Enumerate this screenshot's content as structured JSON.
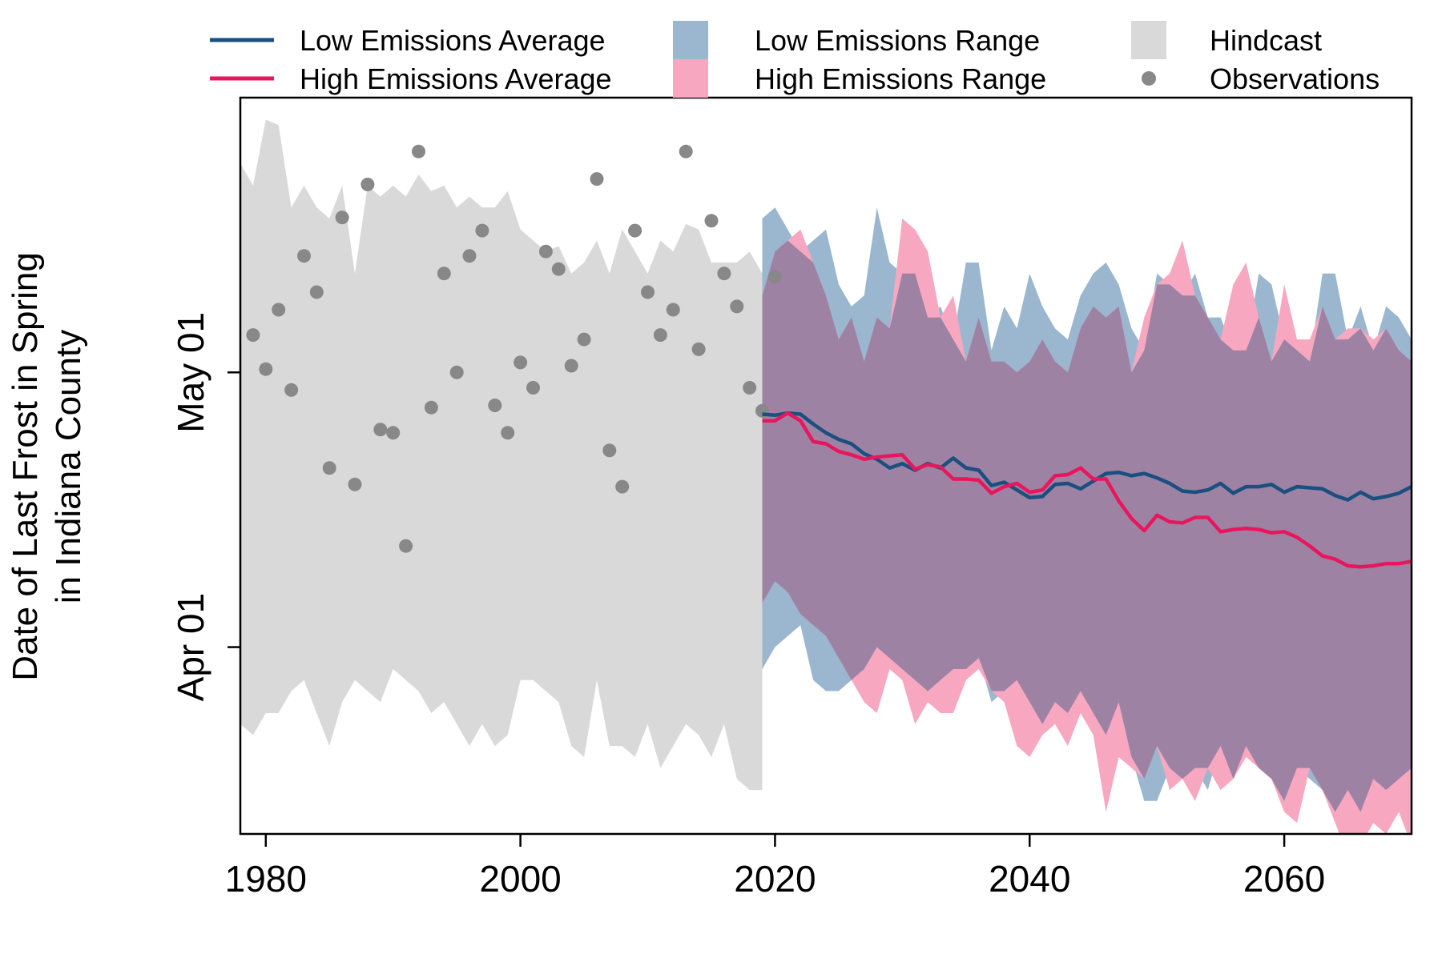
{
  "chart_data": {
    "type": "line",
    "title": "",
    "xlabel": "",
    "ylabel": [
      "Date of Last Frost in Spring",
      "in Indiana County"
    ],
    "xlim": [
      1978,
      2070
    ],
    "ylim_days_rel_apr01": [
      -17,
      50
    ],
    "x_ticks": [
      1980,
      2000,
      2020,
      2040,
      2060
    ],
    "y_ticks": [
      {
        "value": 0,
        "label": "Apr 01"
      },
      {
        "value": 25,
        "label": "May 01"
      }
    ],
    "grid": false,
    "legend": {
      "placement": "top",
      "items": [
        {
          "key": "low_avg",
          "label": "Low Emissions Average",
          "kind": "line",
          "color": "#1a4f7f"
        },
        {
          "key": "high_avg",
          "label": "High Emissions Average",
          "kind": "line",
          "color": "#e8175d"
        },
        {
          "key": "low_range",
          "label": "Low Emissions Range",
          "kind": "fill",
          "color": "#9bb7cf"
        },
        {
          "key": "high_range",
          "label": "High Emissions Range",
          "kind": "fill",
          "color": "#f7a8c0"
        },
        {
          "key": "hindcast",
          "label": "Hindcast",
          "kind": "fill",
          "color": "#d9d9d9"
        },
        {
          "key": "obs",
          "label": "Observations",
          "kind": "point",
          "color": "#888888"
        }
      ]
    },
    "colors": {
      "low_avg": "#1a4f7f",
      "high_avg": "#e8175d",
      "low_range": "#9bb7cf",
      "high_range": "#f7a8c0",
      "overlap": "#9e82a4",
      "hindcast": "#d9d9d9",
      "obs": "#888888"
    },
    "hindcast": {
      "x": [
        1978,
        1979,
        1980,
        1981,
        1982,
        1983,
        1984,
        1985,
        1986,
        1987,
        1988,
        1989,
        1990,
        1991,
        1992,
        1993,
        1994,
        1995,
        1996,
        1997,
        1998,
        1999,
        2000,
        2001,
        2002,
        2003,
        2004,
        2005,
        2006,
        2007,
        2008,
        2009,
        2010,
        2011,
        2012,
        2013,
        2014,
        2015,
        2016,
        2017,
        2018,
        2019
      ],
      "upper": [
        44,
        42,
        48,
        47.5,
        40,
        42,
        40,
        39,
        42,
        34,
        42,
        41,
        42,
        41,
        43,
        41.5,
        42,
        40,
        41,
        40,
        40,
        41.5,
        38,
        37,
        36,
        36.5,
        34,
        35,
        37,
        34,
        38,
        36,
        34,
        37,
        36,
        38.5,
        38,
        35,
        35,
        35,
        36,
        34
      ],
      "lower": [
        -7,
        -8,
        -6,
        -6,
        -4,
        -3,
        -6,
        -9,
        -5,
        -3,
        -4,
        -5,
        -2,
        -3,
        -4,
        -6,
        -5,
        -7,
        -9,
        -7,
        -9,
        -8,
        -3,
        -3,
        -4,
        -5,
        -9,
        -10,
        -3,
        -9,
        -9,
        -10,
        -7,
        -11,
        -9,
        -7,
        -8,
        -10,
        -7,
        -12,
        -13,
        -13
      ]
    },
    "observations": {
      "x": [
        1979,
        1980,
        1981,
        1982,
        1983,
        1984,
        1985,
        1986,
        1987,
        1988,
        1989,
        1990,
        1991,
        1992,
        1993,
        1994,
        1995,
        1996,
        1997,
        1998,
        1999,
        2000,
        2001,
        2002,
        2003,
        2004,
        2005,
        2006,
        2007,
        2008,
        2009,
        2010,
        2011,
        2012,
        2013,
        2014,
        2015,
        2016,
        2017,
        2018,
        2019,
        2020
      ],
      "y": [
        28.4,
        25.3,
        30.7,
        23.4,
        35.6,
        32.3,
        16.3,
        39.1,
        14.8,
        42.1,
        19.8,
        19.5,
        9.2,
        45.1,
        21.8,
        34.0,
        25.0,
        35.6,
        37.9,
        22.0,
        19.5,
        25.9,
        23.6,
        36.0,
        34.4,
        25.6,
        28.0,
        42.6,
        17.9,
        14.6,
        37.9,
        32.3,
        28.4,
        30.7,
        45.1,
        27.1,
        38.8,
        34.0,
        31.0,
        23.6,
        21.5,
        33.7
      ]
    },
    "series": [
      {
        "name": "Low Emissions Average",
        "x": [
          2019,
          2020,
          2021,
          2022,
          2023,
          2024,
          2025,
          2026,
          2027,
          2028,
          2029,
          2030,
          2031,
          2032,
          2033,
          2034,
          2035,
          2036,
          2037,
          2038,
          2039,
          2040,
          2041,
          2042,
          2043,
          2044,
          2045,
          2046,
          2047,
          2048,
          2049,
          2050,
          2051,
          2052,
          2053,
          2054,
          2055,
          2056,
          2057,
          2058,
          2059,
          2060,
          2061,
          2062,
          2063,
          2064,
          2065,
          2066,
          2067,
          2068,
          2069,
          2070
        ],
        "y": [
          21.2,
          21.1,
          21.3,
          21.2,
          20.3,
          19.5,
          18.9,
          18.5,
          17.6,
          17.1,
          16.3,
          16.7,
          16.1,
          16.7,
          16.3,
          17.2,
          16.3,
          16.1,
          14.7,
          15.0,
          14.3,
          13.6,
          13.7,
          14.8,
          14.9,
          14.4,
          15.1,
          15.8,
          15.9,
          15.6,
          15.8,
          15.4,
          14.9,
          14.2,
          14.1,
          14.3,
          14.9,
          14.0,
          14.6,
          14.6,
          14.8,
          14.1,
          14.6,
          14.5,
          14.4,
          13.8,
          13.4,
          14.1,
          13.5,
          13.7,
          14.0,
          14.6
        ]
      },
      {
        "name": "High Emissions Average",
        "x": [
          2019,
          2020,
          2021,
          2022,
          2023,
          2024,
          2025,
          2026,
          2027,
          2028,
          2029,
          2030,
          2031,
          2032,
          2033,
          2034,
          2035,
          2036,
          2037,
          2038,
          2039,
          2040,
          2041,
          2042,
          2043,
          2044,
          2045,
          2046,
          2047,
          2048,
          2049,
          2050,
          2051,
          2052,
          2053,
          2054,
          2055,
          2056,
          2057,
          2058,
          2059,
          2060,
          2061,
          2062,
          2063,
          2064,
          2065,
          2066,
          2067,
          2068,
          2069,
          2070
        ],
        "y": [
          20.6,
          20.6,
          21.3,
          20.6,
          18.7,
          18.5,
          17.8,
          17.5,
          17.1,
          17.3,
          17.4,
          17.5,
          16.2,
          16.6,
          16.4,
          15.3,
          15.3,
          15.2,
          14.0,
          14.6,
          14.9,
          14.1,
          14.3,
          15.6,
          15.7,
          16.3,
          15.3,
          15.3,
          13.3,
          11.7,
          10.6,
          12.0,
          11.4,
          11.3,
          11.8,
          11.8,
          10.5,
          10.7,
          10.8,
          10.7,
          10.4,
          10.5,
          10.0,
          9.2,
          8.3,
          8.0,
          7.4,
          7.3,
          7.4,
          7.6,
          7.6,
          7.8
        ]
      }
    ],
    "ranges": {
      "x": [
        2019,
        2020,
        2021,
        2022,
        2023,
        2024,
        2025,
        2026,
        2027,
        2028,
        2029,
        2030,
        2031,
        2032,
        2033,
        2034,
        2035,
        2036,
        2037,
        2038,
        2039,
        2040,
        2041,
        2042,
        2043,
        2044,
        2045,
        2046,
        2047,
        2048,
        2049,
        2050,
        2051,
        2052,
        2053,
        2054,
        2055,
        2056,
        2057,
        2058,
        2059,
        2060,
        2061,
        2062,
        2063,
        2064,
        2065,
        2066,
        2067,
        2068,
        2069,
        2070
      ],
      "low_upper": [
        39,
        40,
        38,
        36,
        37,
        38,
        33,
        31,
        32,
        40,
        35,
        34,
        34,
        30,
        31,
        28,
        35,
        35,
        27,
        31,
        29,
        34,
        31,
        29,
        28,
        32,
        34,
        35,
        33,
        29,
        27,
        34,
        33,
        32,
        34,
        30,
        30,
        27,
        27,
        34,
        33,
        28,
        27,
        26,
        34,
        34,
        28,
        31,
        27,
        31,
        30,
        28
      ],
      "low_lower": [
        -2,
        0,
        1,
        2,
        -3,
        -4,
        -4,
        -3,
        -2,
        0,
        -1,
        -2,
        -3,
        -4,
        -3,
        -2,
        -2,
        -1,
        -5,
        -4,
        -3,
        -5,
        -7,
        -5,
        -6,
        -4,
        -6,
        -8,
        -5,
        -10,
        -14,
        -14,
        -11,
        -12,
        -11,
        -13,
        -9,
        -12,
        -9,
        -11,
        -12,
        -14,
        -11,
        -12,
        -13,
        -15,
        -13,
        -15,
        -12,
        -13,
        -12,
        -11
      ],
      "high_upper": [
        32,
        36,
        37,
        38,
        35,
        32,
        28,
        30,
        26,
        30,
        29,
        39,
        38,
        36,
        30,
        32,
        26,
        30,
        26,
        26,
        25,
        26,
        28,
        26,
        25,
        29,
        31,
        30,
        31,
        25,
        30,
        33,
        34,
        37,
        32,
        30,
        28,
        33,
        35,
        30,
        26,
        33,
        28,
        28,
        31,
        28,
        29,
        29,
        28,
        29,
        27,
        26
      ],
      "high_lower": [
        4,
        6,
        5,
        3,
        2,
        1,
        -1,
        -3,
        -5,
        -6,
        -2,
        -3,
        -7,
        -5,
        -6,
        -6,
        -3,
        -2,
        -4,
        -5,
        -9,
        -10,
        -8,
        -7,
        -9,
        -6,
        -8,
        -15,
        -10,
        -11,
        -12,
        -9,
        -13,
        -12,
        -14,
        -11,
        -13,
        -12,
        -10,
        -11,
        -12,
        -15,
        -16,
        -11,
        -13,
        -16,
        -19,
        -18,
        -16,
        -17,
        -15,
        -18
      ]
    }
  }
}
